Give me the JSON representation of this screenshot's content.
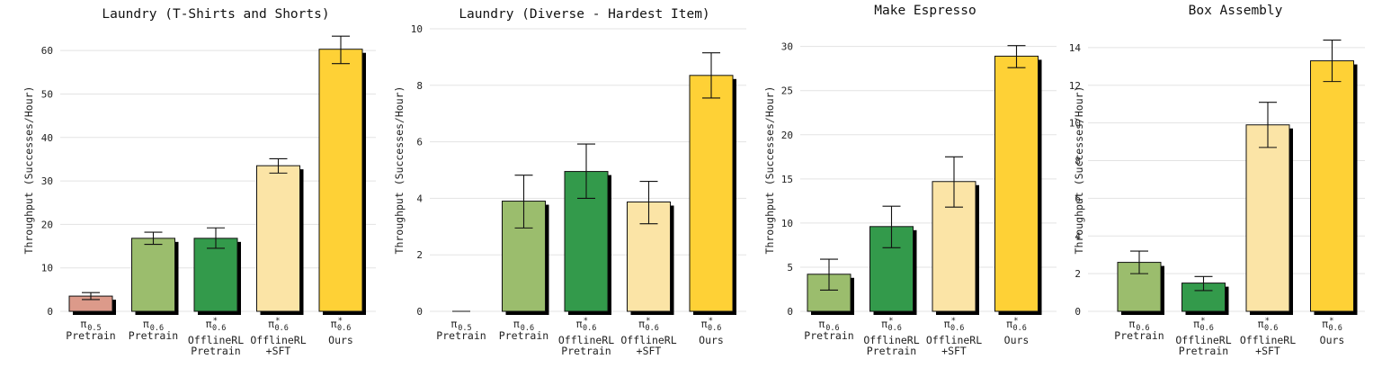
{
  "chart_data": [
    {
      "type": "bar",
      "title": "Laundry (T-Shirts and Shorts)",
      "ylabel": "Throughput (Successes/Hour)",
      "xlabel": "",
      "ylim": [
        0,
        65
      ],
      "yticks": [
        0,
        10,
        20,
        30,
        40,
        50,
        60
      ],
      "categories": [
        {
          "model": "π",
          "sub": "0.5",
          "star": false,
          "lines": [
            "Pretrain"
          ]
        },
        {
          "model": "π",
          "sub": "0.6",
          "star": false,
          "lines": [
            "Pretrain"
          ]
        },
        {
          "model": "π",
          "sub": "0.6",
          "star": true,
          "lines": [
            "OfflineRL",
            "Pretrain"
          ]
        },
        {
          "model": "π",
          "sub": "0.6",
          "star": true,
          "lines": [
            "OfflineRL",
            "+SFT"
          ]
        },
        {
          "model": "π",
          "sub": "0.6",
          "star": true,
          "lines": [
            "Ours"
          ]
        }
      ],
      "values": [
        3.5,
        16.8,
        16.8,
        33.5,
        60.3
      ],
      "error_low": [
        2.7,
        15.4,
        14.5,
        31.8,
        57.0
      ],
      "error_high": [
        4.3,
        18.2,
        19.2,
        35.1,
        63.3
      ],
      "colors": [
        "#dc9a8a",
        "#9bbd6d",
        "#339a4b",
        "#fbe4a6",
        "#fed136"
      ]
    },
    {
      "type": "bar",
      "title": "Laundry (Diverse - Hardest Item)",
      "ylabel": "Throughput (Successes/Hour)",
      "xlabel": "",
      "ylim": [
        0,
        10
      ],
      "yticks": [
        0,
        2,
        4,
        6,
        8,
        10
      ],
      "categories": [
        {
          "model": "π",
          "sub": "0.5",
          "star": false,
          "lines": [
            "Pretrain"
          ]
        },
        {
          "model": "π",
          "sub": "0.6",
          "star": false,
          "lines": [
            "Pretrain"
          ]
        },
        {
          "model": "π",
          "sub": "0.6",
          "star": true,
          "lines": [
            "OfflineRL",
            "Pretrain"
          ]
        },
        {
          "model": "π",
          "sub": "0.6",
          "star": true,
          "lines": [
            "OfflineRL",
            "+SFT"
          ]
        },
        {
          "model": "π",
          "sub": "0.6",
          "star": true,
          "lines": [
            "Ours"
          ]
        }
      ],
      "values": [
        0,
        3.9,
        4.95,
        3.87,
        8.35
      ],
      "error_low": [
        0,
        2.95,
        4.0,
        3.1,
        7.55
      ],
      "error_high": [
        0,
        4.82,
        5.92,
        4.6,
        9.15
      ],
      "colors": [
        "#dc9a8a",
        "#9bbd6d",
        "#339a4b",
        "#fbe4a6",
        "#fed136"
      ]
    },
    {
      "type": "bar",
      "title": "Make Espresso",
      "ylabel": "Throughput (Successes/Hour)",
      "xlabel": "",
      "ylim": [
        0,
        32
      ],
      "yticks": [
        0,
        5,
        10,
        15,
        20,
        25,
        30
      ],
      "categories": [
        {
          "model": "π",
          "sub": "0.6",
          "star": false,
          "lines": [
            "Pretrain"
          ]
        },
        {
          "model": "π",
          "sub": "0.6",
          "star": true,
          "lines": [
            "OfflineRL",
            "Pretrain"
          ]
        },
        {
          "model": "π",
          "sub": "0.6",
          "star": true,
          "lines": [
            "OfflineRL",
            "+SFT"
          ]
        },
        {
          "model": "π",
          "sub": "0.6",
          "star": true,
          "lines": [
            "Ours"
          ]
        }
      ],
      "values": [
        4.2,
        9.6,
        14.7,
        28.9
      ],
      "error_low": [
        2.4,
        7.2,
        11.8,
        27.6
      ],
      "error_high": [
        5.9,
        11.9,
        17.5,
        30.1
      ],
      "colors": [
        "#9bbd6d",
        "#339a4b",
        "#fbe4a6",
        "#fed136"
      ]
    },
    {
      "type": "bar",
      "title": "Box Assembly",
      "ylabel": "Throughput (Successes/Hour)",
      "xlabel": "",
      "ylim": [
        0,
        15
      ],
      "yticks": [
        0,
        2,
        4,
        6,
        8,
        10,
        12,
        14
      ],
      "categories": [
        {
          "model": "π",
          "sub": "0.6",
          "star": false,
          "lines": [
            "Pretrain"
          ]
        },
        {
          "model": "π",
          "sub": "0.6",
          "star": true,
          "lines": [
            "OfflineRL",
            "Pretrain"
          ]
        },
        {
          "model": "π",
          "sub": "0.6",
          "star": true,
          "lines": [
            "OfflineRL",
            "+SFT"
          ]
        },
        {
          "model": "π",
          "sub": "0.6",
          "star": true,
          "lines": [
            "Ours"
          ]
        }
      ],
      "values": [
        2.6,
        1.5,
        9.9,
        13.3
      ],
      "error_low": [
        2.0,
        1.1,
        8.7,
        12.2
      ],
      "error_high": [
        3.2,
        1.85,
        11.1,
        14.4
      ],
      "colors": [
        "#9bbd6d",
        "#339a4b",
        "#fbe4a6",
        "#fed136"
      ]
    }
  ]
}
